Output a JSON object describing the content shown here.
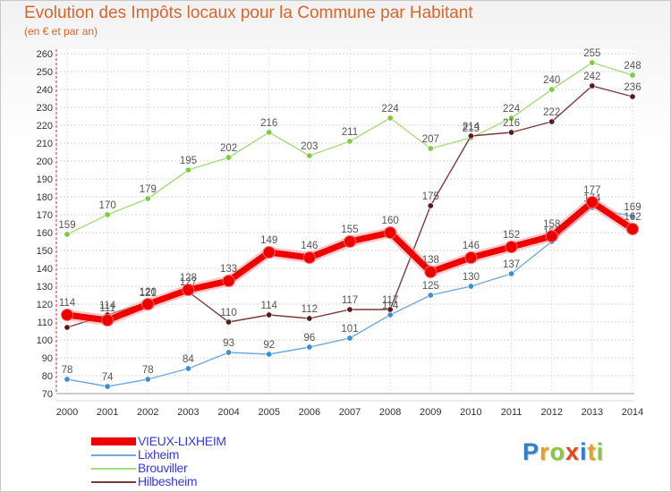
{
  "title": "Evolution des Impôts locaux pour la Commune par Habitant",
  "subtitle": "(en € et par an)",
  "logo": {
    "letters": [
      "P",
      "r",
      "o",
      "x",
      "i",
      "t",
      "i"
    ],
    "colors": [
      "#2f7fcf",
      "#e8a21a",
      "#8cc63e",
      "#e04a1f",
      "#2f7fcf",
      "#e8a21a",
      "#8cc63e"
    ]
  },
  "chart_data": {
    "type": "line",
    "x": [
      "2000",
      "2001",
      "2002",
      "2003",
      "2004",
      "2005",
      "2006",
      "2007",
      "2008",
      "2009",
      "2010",
      "2011",
      "2012",
      "2013",
      "2014"
    ],
    "ylim": [
      70,
      260
    ],
    "ytick_step": 10,
    "grid": true,
    "legend_position": "bottom-left",
    "series": [
      {
        "name": "VIEUX-LIXHEIM",
        "color": "#ee0000",
        "marker_color": "#ee0000",
        "emphasis": true,
        "values": [
          114,
          111,
          120,
          128,
          133,
          149,
          146,
          155,
          160,
          138,
          146,
          152,
          158,
          177,
          162
        ],
        "labels": [
          "114",
          "111",
          "120",
          "128",
          "133",
          "149",
          "146",
          "155",
          "160",
          "138",
          "146",
          "152",
          "158",
          "177",
          "162"
        ]
      },
      {
        "name": "Lixheim",
        "color": "#6fa8dc",
        "marker_color": "#3d8fd1",
        "values": [
          78,
          74,
          78,
          84,
          93,
          92,
          96,
          101,
          114,
          125,
          130,
          137,
          155,
          174,
          169
        ],
        "labels": [
          "78",
          "74",
          "78",
          "84",
          "93",
          "92",
          "96",
          "101",
          "114",
          "125",
          "130",
          "137",
          "155",
          "174",
          "169"
        ]
      },
      {
        "name": "Brouviller",
        "color": "#a6dc7c",
        "marker_color": "#7ccc3e",
        "values": [
          159,
          170,
          179,
          195,
          202,
          216,
          203,
          211,
          224,
          207,
          213,
          224,
          240,
          255,
          248
        ],
        "labels": [
          "159",
          "170",
          "179",
          "195",
          "202",
          "216",
          "203",
          "211",
          "224",
          "207",
          "213",
          "224",
          "240",
          "255",
          "248"
        ]
      },
      {
        "name": "Hilbesheim",
        "color": "#7a3a3a",
        "marker_color": "#5a1a1a",
        "values": [
          107,
          114,
          121,
          127,
          110,
          114,
          112,
          117,
          117,
          175,
          214,
          216,
          222,
          242,
          236
        ],
        "labels": [
          "",
          "114",
          "121",
          "127",
          "110",
          "114",
          "112",
          "117",
          "117",
          "175",
          "214",
          "216",
          "222",
          "242",
          "236"
        ]
      }
    ]
  }
}
